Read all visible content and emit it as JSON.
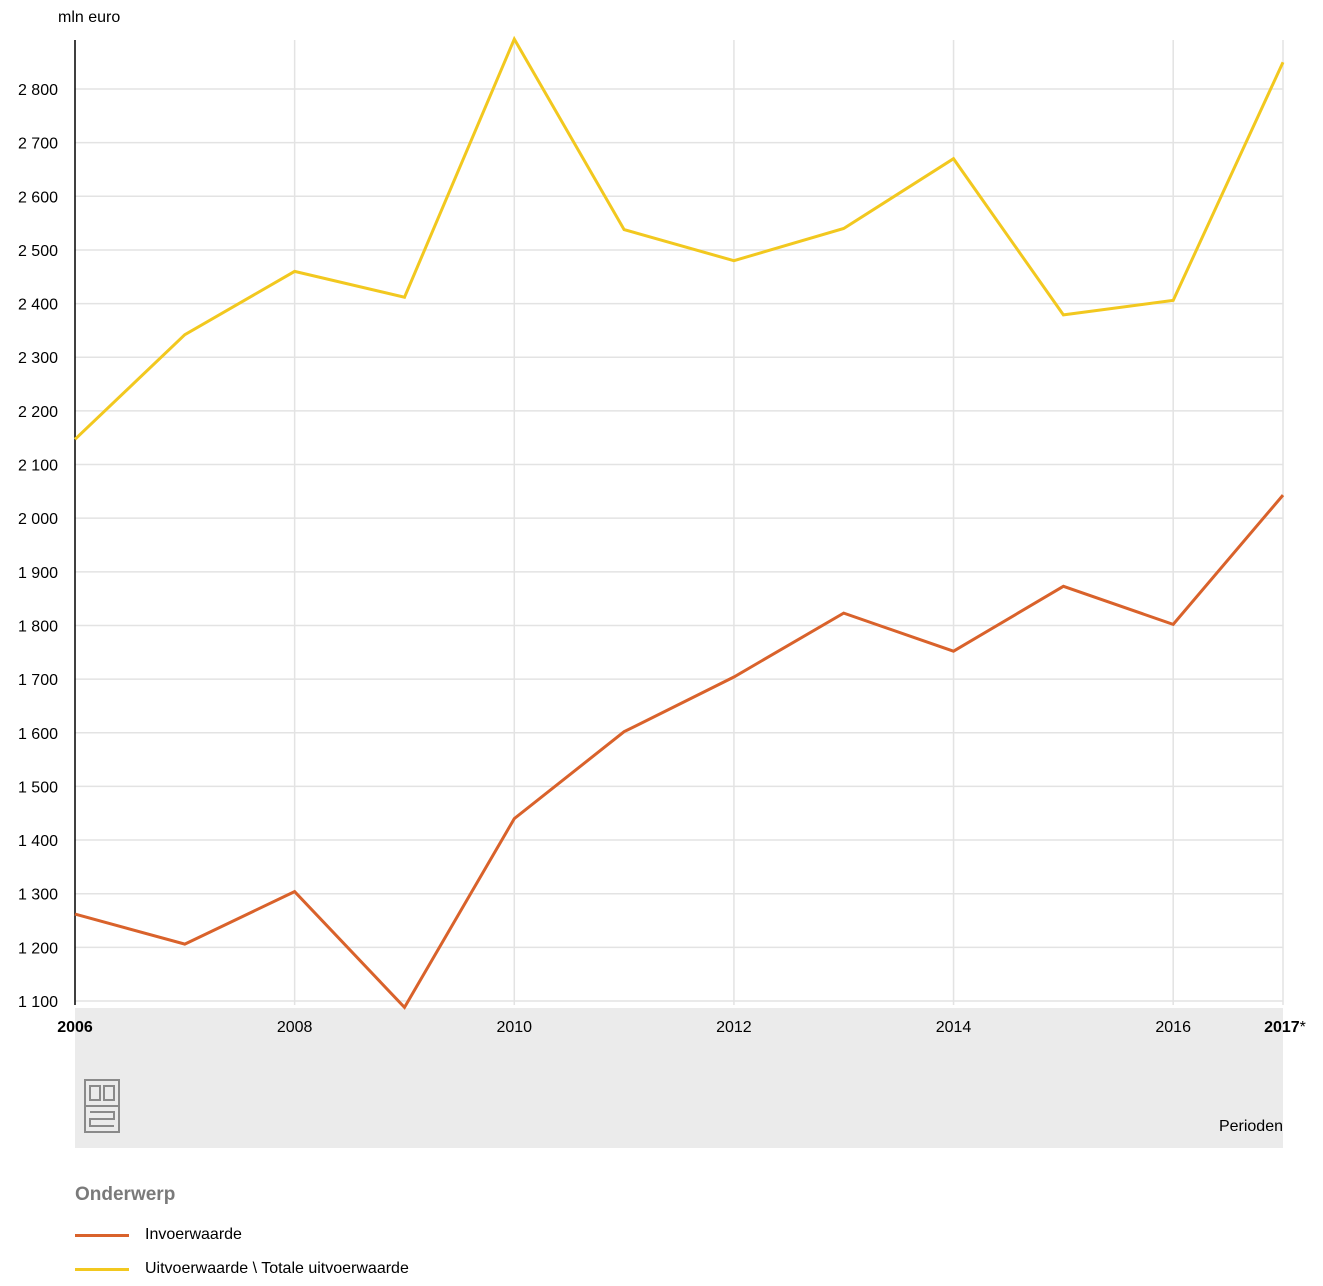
{
  "chart_data": {
    "type": "line",
    "ylabel": "mln euro",
    "xlabel": "Perioden",
    "ylim": [
      1100,
      2900
    ],
    "yticks": [
      1100,
      1200,
      1300,
      1400,
      1500,
      1600,
      1700,
      1800,
      1900,
      2000,
      2100,
      2200,
      2300,
      2400,
      2500,
      2600,
      2700,
      2800
    ],
    "ytick_labels": [
      "1 100",
      "1 200",
      "1 300",
      "1 400",
      "1 500",
      "1 600",
      "1 700",
      "1 800",
      "1 900",
      "2 000",
      "2 100",
      "2 200",
      "2 300",
      "2 400",
      "2 500",
      "2 600",
      "2 700",
      "2 800"
    ],
    "x": [
      2006,
      2007,
      2008,
      2009,
      2010,
      2011,
      2012,
      2013,
      2014,
      2015,
      2016,
      2017
    ],
    "xticks": [
      {
        "value": 2006,
        "label": "2006",
        "bold": true
      },
      {
        "value": 2008,
        "label": "2008",
        "bold": false
      },
      {
        "value": 2010,
        "label": "2010",
        "bold": false
      },
      {
        "value": 2012,
        "label": "2012",
        "bold": false
      },
      {
        "value": 2014,
        "label": "2014",
        "bold": false
      },
      {
        "value": 2016,
        "label": "2016",
        "bold": false
      },
      {
        "value": 2017,
        "label": "2017",
        "bold": true,
        "suffix": "*"
      }
    ],
    "series": [
      {
        "name": "Invoerwaarde",
        "color": "#d9622b",
        "values": [
          1262,
          1206,
          1304,
          1088,
          1440,
          1602,
          1704,
          1823,
          1752,
          1873,
          1802,
          2043
        ]
      },
      {
        "name": "Uitvoerwaarde \\ Totale uitvoerwaarde",
        "color": "#f2c81f",
        "values": [
          2147,
          2342,
          2460,
          2412,
          2893,
          2538,
          2480,
          2540,
          2670,
          2379,
          2406,
          2850
        ]
      }
    ],
    "grid": true,
    "legend_placement": "bottom-left"
  },
  "legend": {
    "title": "Onderwerp",
    "items": [
      {
        "label": "Invoerwaarde",
        "color": "#d9622b"
      },
      {
        "label": "Uitvoerwaarde \\ Totale uitvoerwaarde",
        "color": "#f2c81f"
      }
    ]
  },
  "footer": {
    "logo_icon": "cbs-logo-icon",
    "period_label": "Perioden"
  }
}
